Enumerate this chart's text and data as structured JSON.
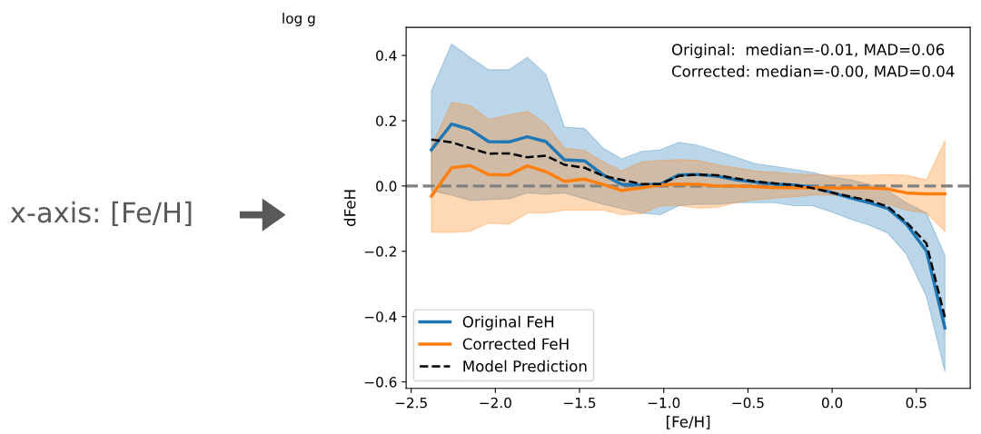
{
  "chart_data": {
    "type": "line",
    "xlabel": "[Fe/H]",
    "ylabel": "dFeH",
    "x": [
      -2.38,
      -2.26,
      -2.15,
      -2.04,
      -1.92,
      -1.81,
      -1.7,
      -1.59,
      -1.47,
      -1.36,
      -1.25,
      -1.13,
      -1.02,
      -0.91,
      -0.8,
      -0.68,
      -0.57,
      -0.46,
      -0.34,
      -0.23,
      -0.12,
      -0.01,
      0.11,
      0.22,
      0.33,
      0.44,
      0.56,
      0.67
    ],
    "series": [
      {
        "name": "Original FeH",
        "color": "#1f77b4",
        "line_style": "solid",
        "values": [
          0.111,
          0.19,
          0.173,
          0.136,
          0.135,
          0.151,
          0.136,
          0.08,
          0.077,
          0.034,
          0.005,
          0.003,
          0.006,
          0.034,
          0.035,
          0.03,
          0.019,
          0.012,
          0.006,
          0.003,
          -0.003,
          -0.019,
          -0.037,
          -0.051,
          -0.069,
          -0.116,
          -0.199,
          -0.435
        ],
        "upper": [
          0.292,
          0.435,
          0.394,
          0.356,
          0.356,
          0.394,
          0.342,
          0.181,
          0.176,
          0.116,
          0.083,
          0.106,
          0.111,
          0.134,
          0.125,
          0.106,
          0.088,
          0.069,
          0.06,
          0.051,
          0.042,
          0.028,
          0.019,
          0.005,
          -0.014,
          -0.051,
          -0.083,
          -0.213
        ],
        "lower": [
          -0.014,
          -0.028,
          -0.044,
          -0.042,
          -0.039,
          -0.021,
          -0.025,
          -0.021,
          -0.039,
          -0.056,
          -0.069,
          -0.083,
          -0.088,
          -0.06,
          -0.056,
          -0.056,
          -0.051,
          -0.051,
          -0.051,
          -0.06,
          -0.06,
          -0.078,
          -0.102,
          -0.12,
          -0.144,
          -0.208,
          -0.338,
          -0.569
        ]
      },
      {
        "name": "Corrected FeH",
        "color": "#ff7f0e",
        "line_style": "solid",
        "values": [
          -0.031,
          0.056,
          0.063,
          0.035,
          0.034,
          0.062,
          0.044,
          0.014,
          0.021,
          0.005,
          -0.014,
          -0.005,
          0.003,
          0.006,
          0.005,
          0.0,
          0.0,
          -0.002,
          -0.005,
          -0.005,
          -0.005,
          -0.006,
          -0.006,
          -0.006,
          -0.009,
          -0.021,
          -0.024,
          -0.024
        ],
        "upper": [
          0.12,
          0.256,
          0.247,
          0.204,
          0.218,
          0.229,
          0.19,
          0.116,
          0.109,
          0.074,
          0.046,
          0.074,
          0.079,
          0.081,
          0.079,
          0.065,
          0.056,
          0.046,
          0.042,
          0.037,
          0.035,
          0.033,
          0.033,
          0.033,
          0.035,
          0.033,
          0.019,
          0.139
        ],
        "lower": [
          -0.142,
          -0.142,
          -0.139,
          -0.114,
          -0.117,
          -0.083,
          -0.083,
          -0.074,
          -0.074,
          -0.074,
          -0.088,
          -0.085,
          -0.06,
          -0.06,
          -0.068,
          -0.065,
          -0.051,
          -0.042,
          -0.037,
          -0.033,
          -0.028,
          -0.028,
          -0.033,
          -0.042,
          -0.056,
          -0.074,
          -0.083,
          -0.139
        ]
      },
      {
        "name": "Model Prediction",
        "color": "#000000",
        "line_style": "dashed",
        "values": [
          0.142,
          0.134,
          0.116,
          0.099,
          0.1,
          0.088,
          0.093,
          0.065,
          0.056,
          0.031,
          0.019,
          0.006,
          0.006,
          0.031,
          0.035,
          0.033,
          0.023,
          0.014,
          0.008,
          0.003,
          -0.006,
          -0.019,
          -0.033,
          -0.044,
          -0.063,
          -0.11,
          -0.176,
          -0.403
        ]
      }
    ],
    "xlim": [
      -2.53,
      0.82
    ],
    "ylim": [
      -0.62,
      0.486
    ],
    "xticks": [
      {
        "value": -2.5,
        "label": "−2.5"
      },
      {
        "value": -2.0,
        "label": "−2.0"
      },
      {
        "value": -1.5,
        "label": "−1.5"
      },
      {
        "value": -1.0,
        "label": "−1.0"
      },
      {
        "value": -0.5,
        "label": "−0.5"
      },
      {
        "value": 0.0,
        "label": "0.0"
      },
      {
        "value": 0.5,
        "label": "0.5"
      }
    ],
    "yticks": [
      {
        "value": -0.6,
        "label": "−0.6"
      },
      {
        "value": -0.4,
        "label": "−0.4"
      },
      {
        "value": -0.2,
        "label": "−0.2"
      },
      {
        "value": 0.0,
        "label": "0.0"
      },
      {
        "value": 0.2,
        "label": "0.2"
      },
      {
        "value": 0.4,
        "label": "0.4"
      }
    ],
    "ref_lines": [
      {
        "axis": "y",
        "value": 0,
        "color": "#808080",
        "line_style": "dashed"
      }
    ],
    "legend": "bottom left",
    "grid": false,
    "annotations": [
      "Original:  median=-0.01, MAD=0.06",
      "Corrected: median=-0.00, MAD=0.04",
      "log g",
      "x-axis: [Fe/H]"
    ]
  }
}
